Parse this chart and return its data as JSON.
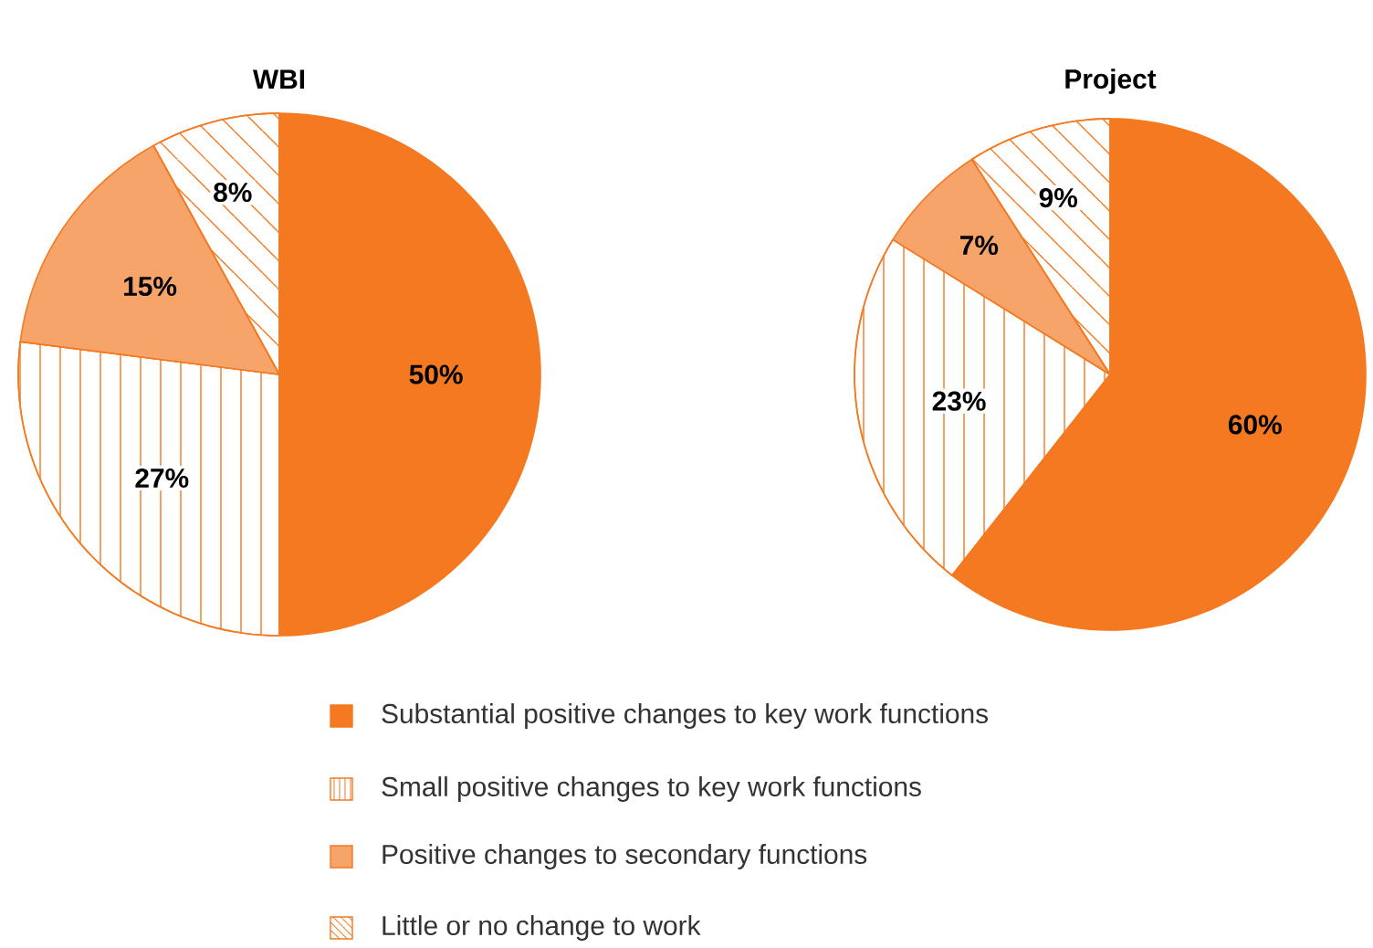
{
  "chart_data": [
    {
      "type": "pie",
      "title": "WBI",
      "categories": [
        "Substantial positive changes to key work functions",
        "Small positive changes to key work functions",
        "Positive changes to secondary functions",
        "Little or no change to work"
      ],
      "values": [
        50,
        27,
        15,
        8
      ],
      "value_labels": [
        "50%",
        "27%",
        "15%",
        "8%"
      ],
      "colors": [
        "#f47920",
        "#ffffff",
        "#f7a46b",
        "#ffffff"
      ],
      "legend": "bottom"
    },
    {
      "type": "pie",
      "title": "Project",
      "values": [
        60,
        23,
        7,
        9
      ],
      "value_labels": [
        "60%",
        "23%",
        "7%",
        "9%"
      ],
      "colors": [
        "#f47920",
        "#ffffff",
        "#f7a46b",
        "#ffffff"
      ]
    }
  ]
}
